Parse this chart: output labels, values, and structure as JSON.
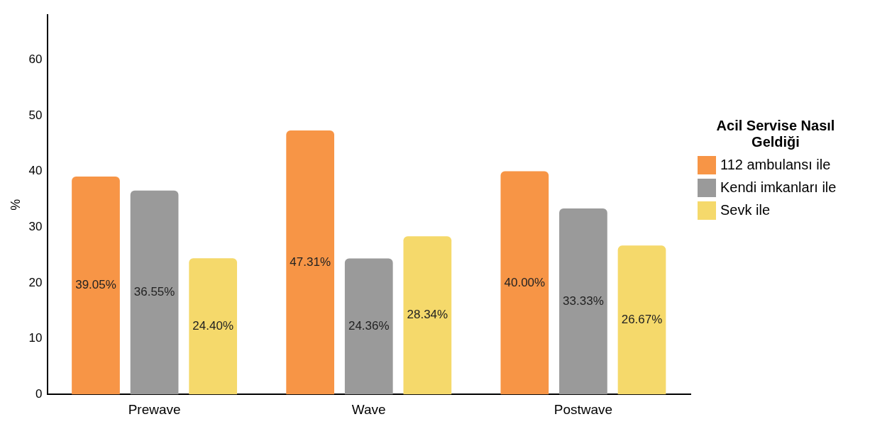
{
  "chart_data": {
    "type": "bar",
    "ylabel": "%",
    "legend_title": "Acil Servise Nasıl Geldiği",
    "categories": [
      "Prewave",
      "Wave",
      "Postwave"
    ],
    "series": [
      {
        "name": "112 ambulansı ile",
        "color": "#f79546",
        "values": [
          39.05,
          47.31,
          40.0
        ],
        "value_labels": [
          "39.05%",
          "47.31%",
          "40.00%"
        ]
      },
      {
        "name": "Kendi imkanları ile",
        "color": "#9a9a9a",
        "values": [
          36.55,
          24.36,
          33.33
        ],
        "value_labels": [
          "36.55%",
          "24.36%",
          "33.33%"
        ]
      },
      {
        "name": "Sevk ile",
        "color": "#f5d96b",
        "values": [
          24.4,
          28.34,
          26.67
        ],
        "value_labels": [
          "24.40%",
          "28.34%",
          "26.67%"
        ]
      }
    ],
    "ylim": [
      0,
      68
    ],
    "yticks": [
      0,
      10,
      20,
      30,
      40,
      50,
      60
    ],
    "grid": false,
    "legend": "right"
  }
}
